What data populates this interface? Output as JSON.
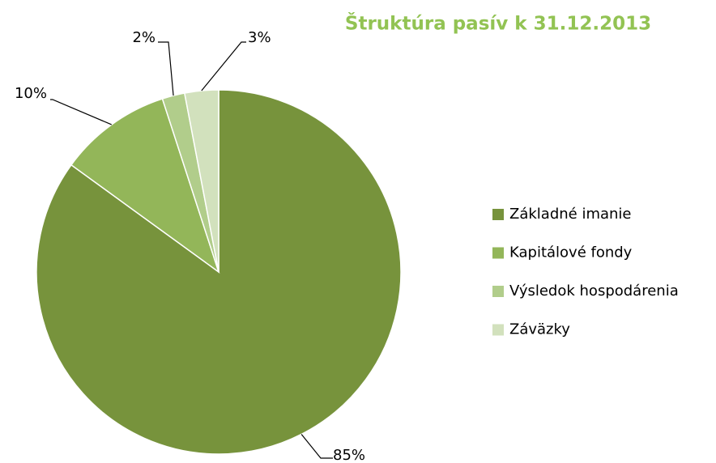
{
  "chart_data": {
    "type": "pie",
    "title": "Štruktúra pasív k 31.12.2013",
    "categories": [
      "Základné imanie",
      "Kapitálové fondy",
      "Výsledok hospodárenia",
      "Záväzky"
    ],
    "values": [
      85,
      10,
      2,
      3
    ],
    "value_labels": [
      "85%",
      "10%",
      "2%",
      "3%"
    ],
    "colors": [
      "#77933c",
      "#93b659",
      "#b1cd8b",
      "#d2e1bd"
    ],
    "legend": "right"
  }
}
